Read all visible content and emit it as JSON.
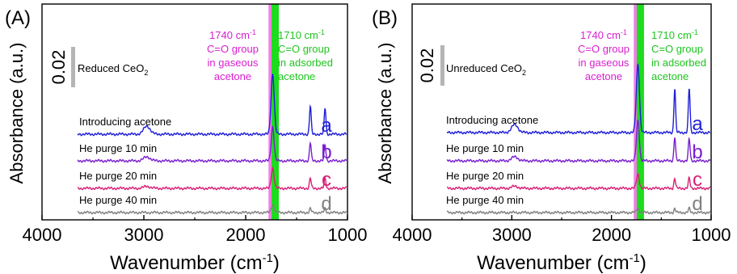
{
  "chart_data": [
    {
      "type": "line",
      "panel_label": "(A)",
      "xlabel": "Wavenumber (cm",
      "xlabel_sup": "-1",
      "xlabel_close": ")",
      "ylabel": "Absorbance (a.u.)",
      "xlim": [
        4000,
        1000
      ],
      "x_ticks": [
        "4000",
        "3000",
        "2000",
        "1000"
      ],
      "scale_bar": {
        "label": "0.02",
        "sample": "Reduced CeO",
        "sample_sub": "2"
      },
      "bands": [
        {
          "name": "gaseous",
          "wavenumber": 1740,
          "color": "#f080e6",
          "text_color": "#d81fcf",
          "lines": [
            "1740 cm-1",
            "C=O group",
            "in gaseous",
            "acetone"
          ]
        },
        {
          "name": "adsorbed",
          "wavenumber": 1710,
          "color": "#1ddc1d",
          "text_color": "#1fc41f",
          "lines": [
            "1710 cm-1",
            "C=O group",
            "in adsorbed",
            "acetone"
          ]
        }
      ],
      "series": [
        {
          "name": "Introducing acetone",
          "letter": "a",
          "color": "#1f1fd8",
          "baseline": 0.0,
          "peaks": [
            [
              2970,
              0.004,
              45
            ],
            [
              1735,
              0.03,
              22
            ],
            [
              1365,
              0.014,
              12
            ],
            [
              1220,
              0.013,
              12
            ]
          ]
        },
        {
          "name": "He purge 10 min",
          "letter": "b",
          "color": "#7a1fd0",
          "baseline": -0.018,
          "peaks": [
            [
              2970,
              0.002,
              45
            ],
            [
              1735,
              0.017,
              20
            ],
            [
              1365,
              0.009,
              12
            ],
            [
              1220,
              0.008,
              12
            ]
          ]
        },
        {
          "name": "He purge 20 min",
          "letter": "c",
          "color": "#d81f78",
          "baseline": -0.0365,
          "peaks": [
            [
              2970,
              0.001,
              45
            ],
            [
              1735,
              0.01,
              20
            ],
            [
              1365,
              0.005,
              12
            ],
            [
              1220,
              0.005,
              12
            ]
          ]
        },
        {
          "name": "He purge 40 min",
          "letter": "d",
          "color": "#808080",
          "baseline": -0.0505,
          "peaks": [
            [
              1735,
              0.004,
              20
            ],
            [
              1365,
              0.002,
              12
            ],
            [
              1220,
              0.002,
              12
            ]
          ]
        }
      ]
    },
    {
      "type": "line",
      "panel_label": "(B)",
      "xlabel": "Wavenumber (cm",
      "xlabel_sup": "-1",
      "xlabel_close": ")",
      "ylabel": "Absorbance (a.u.)",
      "xlim": [
        4000,
        1000
      ],
      "x_ticks": [
        "4000",
        "3000",
        "2000",
        "1000"
      ],
      "scale_bar": {
        "label": "0.02",
        "sample": "Unreduced CeO",
        "sample_sub": "2"
      },
      "bands": [
        {
          "name": "gaseous",
          "wavenumber": 1740,
          "color": "#f080e6",
          "text_color": "#d81fcf",
          "lines": [
            "1740 cm-1",
            "C=O group",
            "in gaseous",
            "acetone"
          ]
        },
        {
          "name": "adsorbed",
          "wavenumber": 1710,
          "color": "#1ddc1d",
          "text_color": "#1fc41f",
          "lines": [
            "1710 cm-1",
            "C=O group",
            "in adsorbed",
            "acetone"
          ]
        }
      ],
      "series": [
        {
          "name": "Introducing acetone",
          "letter": "a",
          "color": "#1f1fd8",
          "baseline": 0.0,
          "peaks": [
            [
              2970,
              0.004,
              45
            ],
            [
              1735,
              0.034,
              22
            ],
            [
              1365,
              0.022,
              12
            ],
            [
              1220,
              0.022,
              12
            ]
          ]
        },
        {
          "name": "He purge 10 min",
          "letter": "b",
          "color": "#7a1fd0",
          "baseline": -0.018,
          "peaks": [
            [
              2970,
              0.002,
              45
            ],
            [
              1735,
              0.02,
              20
            ],
            [
              1365,
              0.012,
              12
            ],
            [
              1220,
              0.011,
              12
            ]
          ]
        },
        {
          "name": "He purge 20 min",
          "letter": "c",
          "color": "#d81f78",
          "baseline": -0.0365,
          "peaks": [
            [
              2970,
              0.001,
              45
            ],
            [
              1735,
              0.007,
              20
            ],
            [
              1365,
              0.005,
              12
            ],
            [
              1220,
              0.005,
              12
            ]
          ]
        },
        {
          "name": "He purge 40 min",
          "letter": "d",
          "color": "#808080",
          "baseline": -0.0505,
          "peaks": [
            [
              1735,
              0.002,
              20
            ],
            [
              1365,
              0.002,
              12
            ],
            [
              1220,
              0.002,
              12
            ]
          ]
        }
      ]
    }
  ]
}
